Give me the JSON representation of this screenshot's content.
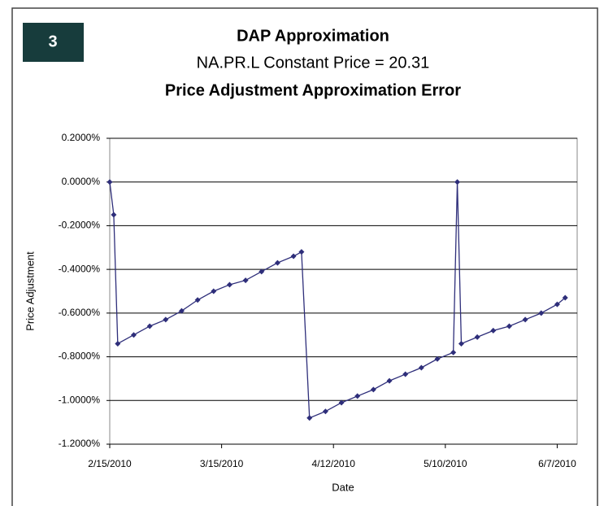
{
  "badge": "3",
  "chart_data": {
    "type": "line",
    "title": "DAP Approximation",
    "subtitle": "NA.PR.L Constant Price = 20.31",
    "heading": "Price Adjustment Approximation Error",
    "x_label": "Date",
    "y_label": "Price Adjustment",
    "x": [
      "2/15/2010",
      "2/16/2010",
      "2/17/2010",
      "2/21/2010",
      "2/25/2010",
      "3/1/2010",
      "3/5/2010",
      "3/9/2010",
      "3/13/2010",
      "3/17/2010",
      "3/21/2010",
      "3/25/2010",
      "3/29/2010",
      "4/2/2010",
      "4/4/2010",
      "4/6/2010",
      "4/10/2010",
      "4/14/2010",
      "4/18/2010",
      "4/22/2010",
      "4/26/2010",
      "4/30/2010",
      "5/4/2010",
      "5/8/2010",
      "5/12/2010",
      "5/13/2010",
      "5/14/2010",
      "5/18/2010",
      "5/22/2010",
      "5/26/2010",
      "5/30/2010",
      "6/3/2010",
      "6/7/2010",
      "6/9/2010"
    ],
    "series": [
      {
        "color": "#2e2e7a",
        "values": [
          0,
          -0.15,
          -0.74,
          -0.7,
          -0.66,
          -0.63,
          -0.59,
          -0.54,
          -0.5,
          -0.47,
          -0.45,
          -0.41,
          -0.37,
          -0.34,
          -0.32,
          -1.08,
          -1.05,
          -1.01,
          -0.98,
          -0.95,
          -0.91,
          -0.88,
          -0.85,
          -0.81,
          -0.78,
          0,
          -0.74,
          -0.71,
          -0.68,
          -0.66,
          -0.63,
          -0.6,
          -0.56,
          -0.53
        ]
      }
    ],
    "xlim": [
      "2/15/2010",
      "6/12/2010"
    ],
    "xticks": [
      "2/15/2010",
      "3/15/2010",
      "4/12/2010",
      "5/10/2010",
      "6/7/2010"
    ],
    "ylim": [
      -1.2,
      0.2
    ],
    "yticks": [
      {
        "value": 0.2,
        "label": "0.2000%"
      },
      {
        "value": 0,
        "label": "0.0000%"
      },
      {
        "value": -0.2,
        "label": "-0.2000%"
      },
      {
        "value": -0.4,
        "label": "-0.4000%"
      },
      {
        "value": -0.6,
        "label": "-0.6000%"
      },
      {
        "value": -0.8,
        "label": "-0.8000%"
      },
      {
        "value": -1.0,
        "label": "-1.0000%"
      },
      {
        "value": -1.2,
        "label": "-1.2000%"
      }
    ],
    "grid": true
  }
}
